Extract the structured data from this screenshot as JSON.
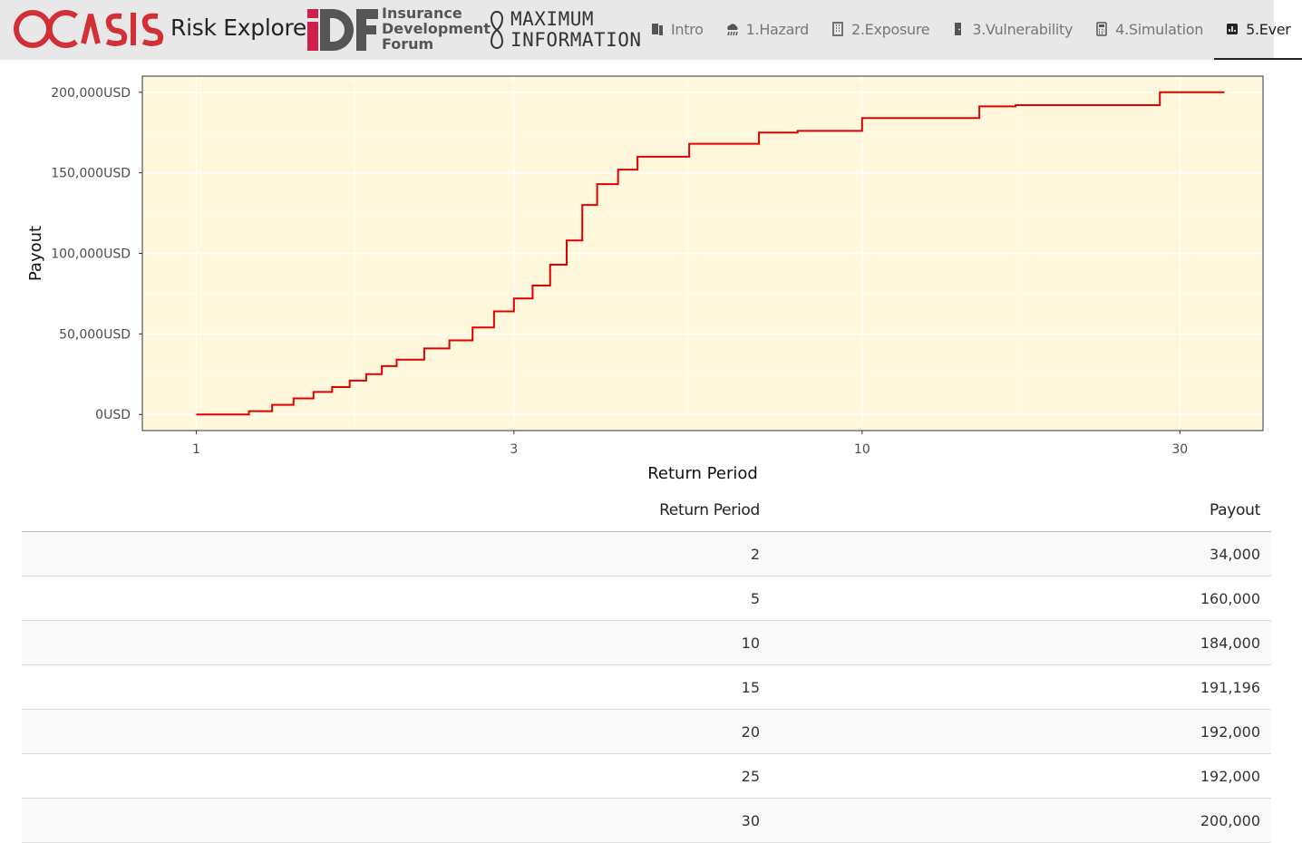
{
  "header": {
    "app_title": "Risk Explorer",
    "idf_lines": [
      "Insurance",
      "Development",
      "Forum"
    ],
    "maxinfo_lines": [
      "MAXIMUM",
      "INFORMATION"
    ]
  },
  "nav": {
    "tabs": [
      {
        "label": "Intro",
        "icon": "book-icon",
        "active": false
      },
      {
        "label": "1.Hazard",
        "icon": "cloud-rain-icon",
        "active": false
      },
      {
        "label": "2.Exposure",
        "icon": "building-icon",
        "active": false
      },
      {
        "label": "3.Vulnerability",
        "icon": "door-icon",
        "active": false
      },
      {
        "label": "4.Simulation",
        "icon": "calculator-icon",
        "active": false
      },
      {
        "label": "5.Ever",
        "icon": "bar-chart-icon",
        "active": true
      }
    ]
  },
  "colors": {
    "line": "#e00000",
    "panel": "#fff8dc",
    "navbar": "#e8e8e8",
    "oasis_red": "#d32f36"
  },
  "chart_data": {
    "type": "line",
    "xlabel": "Return Period",
    "ylabel": "Payout",
    "x_scale": "log",
    "x_ticks": [
      1,
      3,
      10,
      30
    ],
    "x_tick_labels": [
      "1",
      "3",
      "10",
      "30"
    ],
    "y_ticks": [
      0,
      50000,
      100000,
      150000,
      200000
    ],
    "y_tick_labels": [
      "0USD",
      "50,000USD",
      "100,000USD",
      "150,000USD",
      "200,000USD"
    ],
    "xlim": [
      0.83,
      40
    ],
    "ylim": [
      -10000,
      210000
    ],
    "grid": true,
    "series": [
      {
        "x": [
          1,
          1.2,
          1.3,
          1.4,
          1.5,
          1.6,
          1.7,
          1.8,
          1.9,
          2,
          2.2,
          2.4,
          2.6,
          2.8,
          3,
          3.2,
          3.4,
          3.6,
          3.8,
          4,
          4.3,
          4.6,
          5,
          5.5,
          6,
          7,
          8,
          9,
          10,
          12,
          14,
          15,
          17,
          20,
          25,
          28,
          35
        ],
        "y": [
          0,
          2000,
          6000,
          10000,
          14000,
          17000,
          21000,
          25000,
          30000,
          34000,
          41000,
          46000,
          54000,
          64000,
          72000,
          80000,
          93000,
          108000,
          130000,
          143000,
          152000,
          160000,
          160000,
          168000,
          168000,
          175000,
          176000,
          176000,
          184000,
          184000,
          184000,
          191196,
          192000,
          192000,
          192000,
          200000,
          200000
        ]
      }
    ]
  },
  "table": {
    "headers": [
      "Return Period",
      "Payout"
    ],
    "rows": [
      [
        "2",
        "34,000"
      ],
      [
        "5",
        "160,000"
      ],
      [
        "10",
        "184,000"
      ],
      [
        "15",
        "191,196"
      ],
      [
        "20",
        "192,000"
      ],
      [
        "25",
        "192,000"
      ],
      [
        "30",
        "200,000"
      ]
    ]
  }
}
